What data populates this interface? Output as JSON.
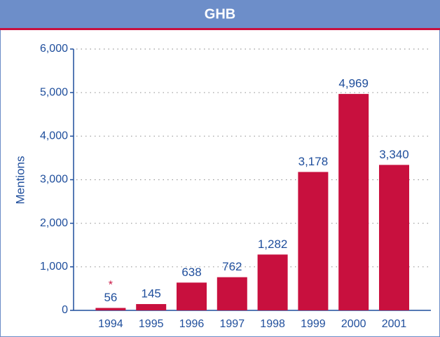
{
  "chart_data": {
    "type": "bar",
    "title": "GHB",
    "y_label": "Mentions",
    "categories": [
      "1994",
      "1995",
      "1996",
      "1997",
      "1998",
      "1999",
      "2000",
      "2001"
    ],
    "values": [
      56,
      145,
      638,
      762,
      1282,
      3178,
      4969,
      3340
    ],
    "value_labels": [
      "56",
      "145",
      "638",
      "762",
      "1,282",
      "3,178",
      "4,969",
      "3,340"
    ],
    "annotation": "*",
    "color": "#c8103e",
    "ylim": [
      0,
      6000
    ],
    "yticks": [
      0,
      {
        "value": 1000,
        "label": "1,000"
      },
      {
        "value": 2000,
        "label": "2,000"
      },
      {
        "value": 3000,
        "label": "3,000"
      },
      {
        "value": 4000,
        "label": "4,000"
      },
      {
        "value": 5000,
        "label": "5,000"
      },
      {
        "value": 6000,
        "label": "6,000"
      }
    ],
    "grid": true
  }
}
